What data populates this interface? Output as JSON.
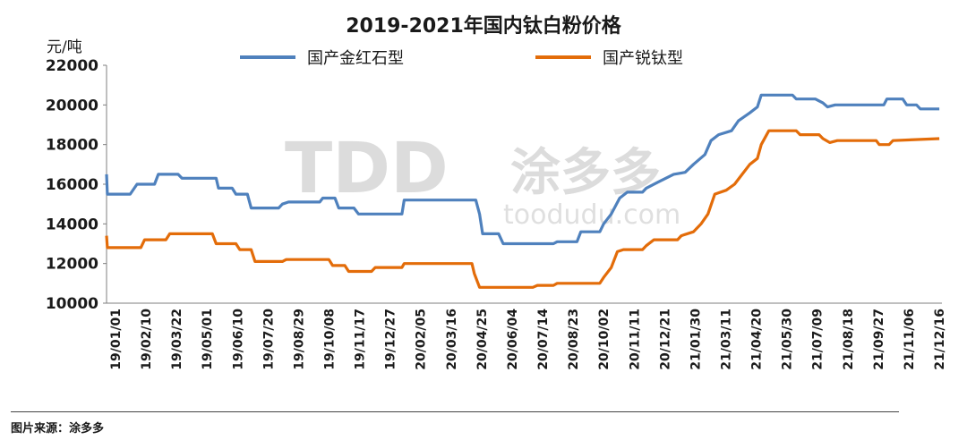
{
  "source_text": "图片来源：涂多多",
  "watermark": {
    "logo": "TDD",
    "cn": "涂多多",
    "url": "toodudu.com"
  },
  "colors": {
    "rutile": "#4f81bd",
    "anatase": "#e36c09"
  },
  "chart_data": {
    "type": "line",
    "title": "2019-2021年国内钛白粉价格",
    "ylabel": "元/吨",
    "xlabel": "",
    "ylim": [
      10000,
      22000
    ],
    "yticks": [
      10000,
      12000,
      14000,
      16000,
      18000,
      20000,
      22000
    ],
    "grid": false,
    "legend_position": "top",
    "x_tick_labels": [
      "19/01/01",
      "19/02/10",
      "19/03/22",
      "19/05/01",
      "19/06/10",
      "19/07/20",
      "19/08/29",
      "19/10/08",
      "19/11/17",
      "19/12/27",
      "20/02/05",
      "20/03/16",
      "20/04/25",
      "20/06/04",
      "20/07/14",
      "20/08/23",
      "20/10/02",
      "20/11/11",
      "20/12/21",
      "21/01/30",
      "21/03/11",
      "21/04/20",
      "21/05/30",
      "21/07/09",
      "21/08/18",
      "21/09/27",
      "21/11/06",
      "21/12/16"
    ],
    "x_range": [
      "2019-01-01",
      "2021-12-31"
    ],
    "series": [
      {
        "name": "国产金红石型",
        "color_key": "rutile",
        "points": [
          [
            "2019-01-01",
            16500
          ],
          [
            "2019-01-02",
            15500
          ],
          [
            "2019-02-01",
            15500
          ],
          [
            "2019-02-10",
            16000
          ],
          [
            "2019-03-05",
            16000
          ],
          [
            "2019-03-10",
            16500
          ],
          [
            "2019-04-05",
            16500
          ],
          [
            "2019-04-10",
            16300
          ],
          [
            "2019-05-25",
            16300
          ],
          [
            "2019-05-28",
            15800
          ],
          [
            "2019-06-15",
            15800
          ],
          [
            "2019-06-20",
            15500
          ],
          [
            "2019-07-05",
            15500
          ],
          [
            "2019-07-10",
            14800
          ],
          [
            "2019-08-15",
            14800
          ],
          [
            "2019-08-20",
            15000
          ],
          [
            "2019-08-28",
            15100
          ],
          [
            "2019-10-08",
            15100
          ],
          [
            "2019-10-12",
            15300
          ],
          [
            "2019-10-28",
            15300
          ],
          [
            "2019-11-02",
            14800
          ],
          [
            "2019-11-22",
            14800
          ],
          [
            "2019-11-28",
            14500
          ],
          [
            "2020-01-24",
            14500
          ],
          [
            "2020-01-27",
            15200
          ],
          [
            "2020-04-30",
            15200
          ],
          [
            "2020-05-05",
            14500
          ],
          [
            "2020-05-09",
            13500
          ],
          [
            "2020-05-30",
            13500
          ],
          [
            "2020-06-05",
            13000
          ],
          [
            "2020-08-10",
            13000
          ],
          [
            "2020-08-15",
            13100
          ],
          [
            "2020-09-10",
            13100
          ],
          [
            "2020-09-15",
            13600
          ],
          [
            "2020-10-10",
            13600
          ],
          [
            "2020-10-15",
            14000
          ],
          [
            "2020-10-25",
            14500
          ],
          [
            "2020-11-05",
            15300
          ],
          [
            "2020-11-15",
            15600
          ],
          [
            "2020-12-05",
            15600
          ],
          [
            "2020-12-10",
            15800
          ],
          [
            "2020-12-25",
            16100
          ],
          [
            "2021-01-15",
            16500
          ],
          [
            "2021-01-30",
            16600
          ],
          [
            "2021-02-10",
            17000
          ],
          [
            "2021-02-25",
            17500
          ],
          [
            "2021-03-05",
            18200
          ],
          [
            "2021-03-15",
            18500
          ],
          [
            "2021-04-01",
            18700
          ],
          [
            "2021-04-10",
            19200
          ],
          [
            "2021-04-25",
            19600
          ],
          [
            "2021-05-05",
            19900
          ],
          [
            "2021-05-10",
            20500
          ],
          [
            "2021-06-20",
            20500
          ],
          [
            "2021-06-25",
            20300
          ],
          [
            "2021-07-20",
            20300
          ],
          [
            "2021-07-30",
            20100
          ],
          [
            "2021-08-05",
            19900
          ],
          [
            "2021-08-15",
            20000
          ],
          [
            "2021-10-18",
            20000
          ],
          [
            "2021-10-22",
            20300
          ],
          [
            "2021-11-12",
            20300
          ],
          [
            "2021-11-17",
            20000
          ],
          [
            "2021-11-30",
            20000
          ],
          [
            "2021-12-05",
            19800
          ],
          [
            "2021-12-30",
            19800
          ]
        ]
      },
      {
        "name": "国产锐钛型",
        "color_key": "anatase",
        "points": [
          [
            "2019-01-01",
            13400
          ],
          [
            "2019-01-02",
            12800
          ],
          [
            "2019-02-15",
            12800
          ],
          [
            "2019-02-20",
            13200
          ],
          [
            "2019-03-20",
            13200
          ],
          [
            "2019-03-25",
            13500
          ],
          [
            "2019-05-20",
            13500
          ],
          [
            "2019-05-25",
            13000
          ],
          [
            "2019-06-20",
            13000
          ],
          [
            "2019-06-25",
            12700
          ],
          [
            "2019-07-10",
            12700
          ],
          [
            "2019-07-15",
            12100
          ],
          [
            "2019-08-20",
            12100
          ],
          [
            "2019-08-25",
            12200
          ],
          [
            "2019-10-20",
            12200
          ],
          [
            "2019-10-25",
            11900
          ],
          [
            "2019-11-10",
            11900
          ],
          [
            "2019-11-15",
            11600
          ],
          [
            "2019-12-15",
            11600
          ],
          [
            "2019-12-20",
            11800
          ],
          [
            "2020-01-24",
            11800
          ],
          [
            "2020-01-27",
            12000
          ],
          [
            "2020-04-25",
            12000
          ],
          [
            "2020-04-28",
            11500
          ],
          [
            "2020-05-05",
            10800
          ],
          [
            "2020-07-14",
            10800
          ],
          [
            "2020-07-20",
            10900
          ],
          [
            "2020-08-10",
            10900
          ],
          [
            "2020-08-15",
            11000
          ],
          [
            "2020-10-10",
            11000
          ],
          [
            "2020-10-15",
            11300
          ],
          [
            "2020-10-25",
            11800
          ],
          [
            "2020-11-02",
            12600
          ],
          [
            "2020-11-10",
            12700
          ],
          [
            "2020-12-05",
            12700
          ],
          [
            "2020-12-10",
            12900
          ],
          [
            "2020-12-20",
            13200
          ],
          [
            "2021-01-20",
            13200
          ],
          [
            "2021-01-25",
            13400
          ],
          [
            "2021-02-10",
            13600
          ],
          [
            "2021-02-20",
            14000
          ],
          [
            "2021-03-01",
            14500
          ],
          [
            "2021-03-10",
            15500
          ],
          [
            "2021-03-25",
            15700
          ],
          [
            "2021-04-05",
            16000
          ],
          [
            "2021-04-15",
            16500
          ],
          [
            "2021-04-25",
            17000
          ],
          [
            "2021-05-05",
            17300
          ],
          [
            "2021-05-10",
            18000
          ],
          [
            "2021-05-20",
            18700
          ],
          [
            "2021-06-25",
            18700
          ],
          [
            "2021-06-30",
            18500
          ],
          [
            "2021-07-25",
            18500
          ],
          [
            "2021-07-30",
            18300
          ],
          [
            "2021-08-08",
            18100
          ],
          [
            "2021-08-18",
            18200
          ],
          [
            "2021-10-08",
            18200
          ],
          [
            "2021-10-12",
            18000
          ],
          [
            "2021-10-25",
            18000
          ],
          [
            "2021-10-30",
            18200
          ],
          [
            "2021-12-30",
            18300
          ]
        ]
      }
    ]
  }
}
